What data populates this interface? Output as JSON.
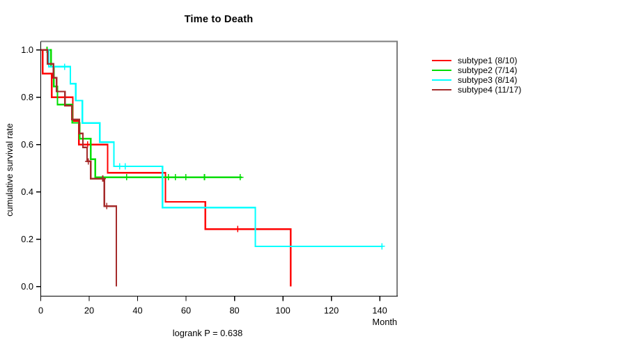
{
  "figure": {
    "background": "#ffffff"
  },
  "chart_data": {
    "type": "line",
    "variant": "kaplan-meier-step",
    "title": "Time to Death",
    "xlabel": "Month",
    "ylabel": "cumulative survival rate",
    "footer": "logrank P = 0.638",
    "xlim": [
      0,
      147
    ],
    "ylim": [
      0.0,
      1.0
    ],
    "xticks": [
      0,
      20,
      40,
      60,
      80,
      100,
      120,
      140
    ],
    "ytick_labels": [
      "0.0",
      "0.2",
      "0.4",
      "0.6",
      "0.8",
      "1.0"
    ],
    "grid": false,
    "legend_position": "right",
    "censor_marker": "plus",
    "series": [
      {
        "name": "subtype1 (8/10)",
        "color": "#FF0000",
        "steps": [
          [
            0,
            1
          ],
          [
            0.8,
            1
          ],
          [
            0.8,
            0.9
          ],
          [
            4.5,
            0.9
          ],
          [
            4.5,
            0.8
          ],
          [
            13.2,
            0.8
          ],
          [
            13.2,
            0.7
          ],
          [
            15.7,
            0.7
          ],
          [
            15.7,
            0.6
          ],
          [
            27.6,
            0.6
          ],
          [
            27.6,
            0.481
          ],
          [
            51.5,
            0.481
          ],
          [
            51.5,
            0.358
          ],
          [
            68,
            0.358
          ],
          [
            68,
            0.243
          ],
          [
            103.2,
            0.243
          ],
          [
            103.2,
            0
          ]
        ],
        "censored": [
          [
            19.3,
            0.6
          ],
          [
            81.3,
            0.243
          ]
        ]
      },
      {
        "name": "subtype2 (7/14)",
        "color": "#00DD00",
        "steps": [
          [
            0,
            1
          ],
          [
            4.2,
            1
          ],
          [
            4.2,
            0.93
          ],
          [
            5.4,
            0.93
          ],
          [
            5.4,
            0.846
          ],
          [
            6.9,
            0.846
          ],
          [
            6.9,
            0.769
          ],
          [
            13,
            0.769
          ],
          [
            13,
            0.692
          ],
          [
            16,
            0.692
          ],
          [
            16,
            0.625
          ],
          [
            20.6,
            0.625
          ],
          [
            20.6,
            0.538
          ],
          [
            22.5,
            0.538
          ],
          [
            22.5,
            0.462
          ],
          [
            83,
            0.462
          ]
        ],
        "censored": [
          [
            2.6,
            1
          ],
          [
            35.5,
            0.462
          ],
          [
            52.7,
            0.462
          ],
          [
            55.6,
            0.462
          ],
          [
            59.9,
            0.462
          ],
          [
            67.6,
            0.462
          ],
          [
            82.4,
            0.462
          ]
        ]
      },
      {
        "name": "subtype3 (8/14)",
        "color": "#00FFFF",
        "steps": [
          [
            0,
            1
          ],
          [
            3.3,
            1
          ],
          [
            3.3,
            0.929
          ],
          [
            12.2,
            0.929
          ],
          [
            12.2,
            0.857
          ],
          [
            14.4,
            0.857
          ],
          [
            14.4,
            0.786
          ],
          [
            17.2,
            0.786
          ],
          [
            17.2,
            0.691
          ],
          [
            24.4,
            0.691
          ],
          [
            24.4,
            0.61
          ],
          [
            30.2,
            0.61
          ],
          [
            30.2,
            0.508
          ],
          [
            50.3,
            0.508
          ],
          [
            50.3,
            0.334
          ],
          [
            88.6,
            0.334
          ],
          [
            88.6,
            0.17
          ],
          [
            141.3,
            0.17
          ]
        ],
        "censored": [
          [
            9.8,
            0.929
          ],
          [
            32.6,
            0.508
          ],
          [
            34.9,
            0.508
          ],
          [
            140.9,
            0.17
          ]
        ]
      },
      {
        "name": "subtype4 (11/17)",
        "color": "#A52A2A",
        "steps": [
          [
            0,
            1
          ],
          [
            2.8,
            1
          ],
          [
            2.8,
            0.941
          ],
          [
            5.2,
            0.941
          ],
          [
            5.2,
            0.882
          ],
          [
            6.5,
            0.882
          ],
          [
            6.5,
            0.824
          ],
          [
            10,
            0.824
          ],
          [
            10,
            0.765
          ],
          [
            12.9,
            0.765
          ],
          [
            12.9,
            0.706
          ],
          [
            15.9,
            0.706
          ],
          [
            15.9,
            0.647
          ],
          [
            17.4,
            0.647
          ],
          [
            17.4,
            0.588
          ],
          [
            19.1,
            0.588
          ],
          [
            19.1,
            0.529
          ],
          [
            20.6,
            0.529
          ],
          [
            20.6,
            0.456
          ],
          [
            26.2,
            0.456
          ],
          [
            26.2,
            0.34
          ],
          [
            31.2,
            0.34
          ],
          [
            31.2,
            0
          ]
        ],
        "censored": [
          [
            19.6,
            0.529
          ],
          [
            25.6,
            0.456
          ],
          [
            27.3,
            0.34
          ]
        ]
      }
    ]
  }
}
